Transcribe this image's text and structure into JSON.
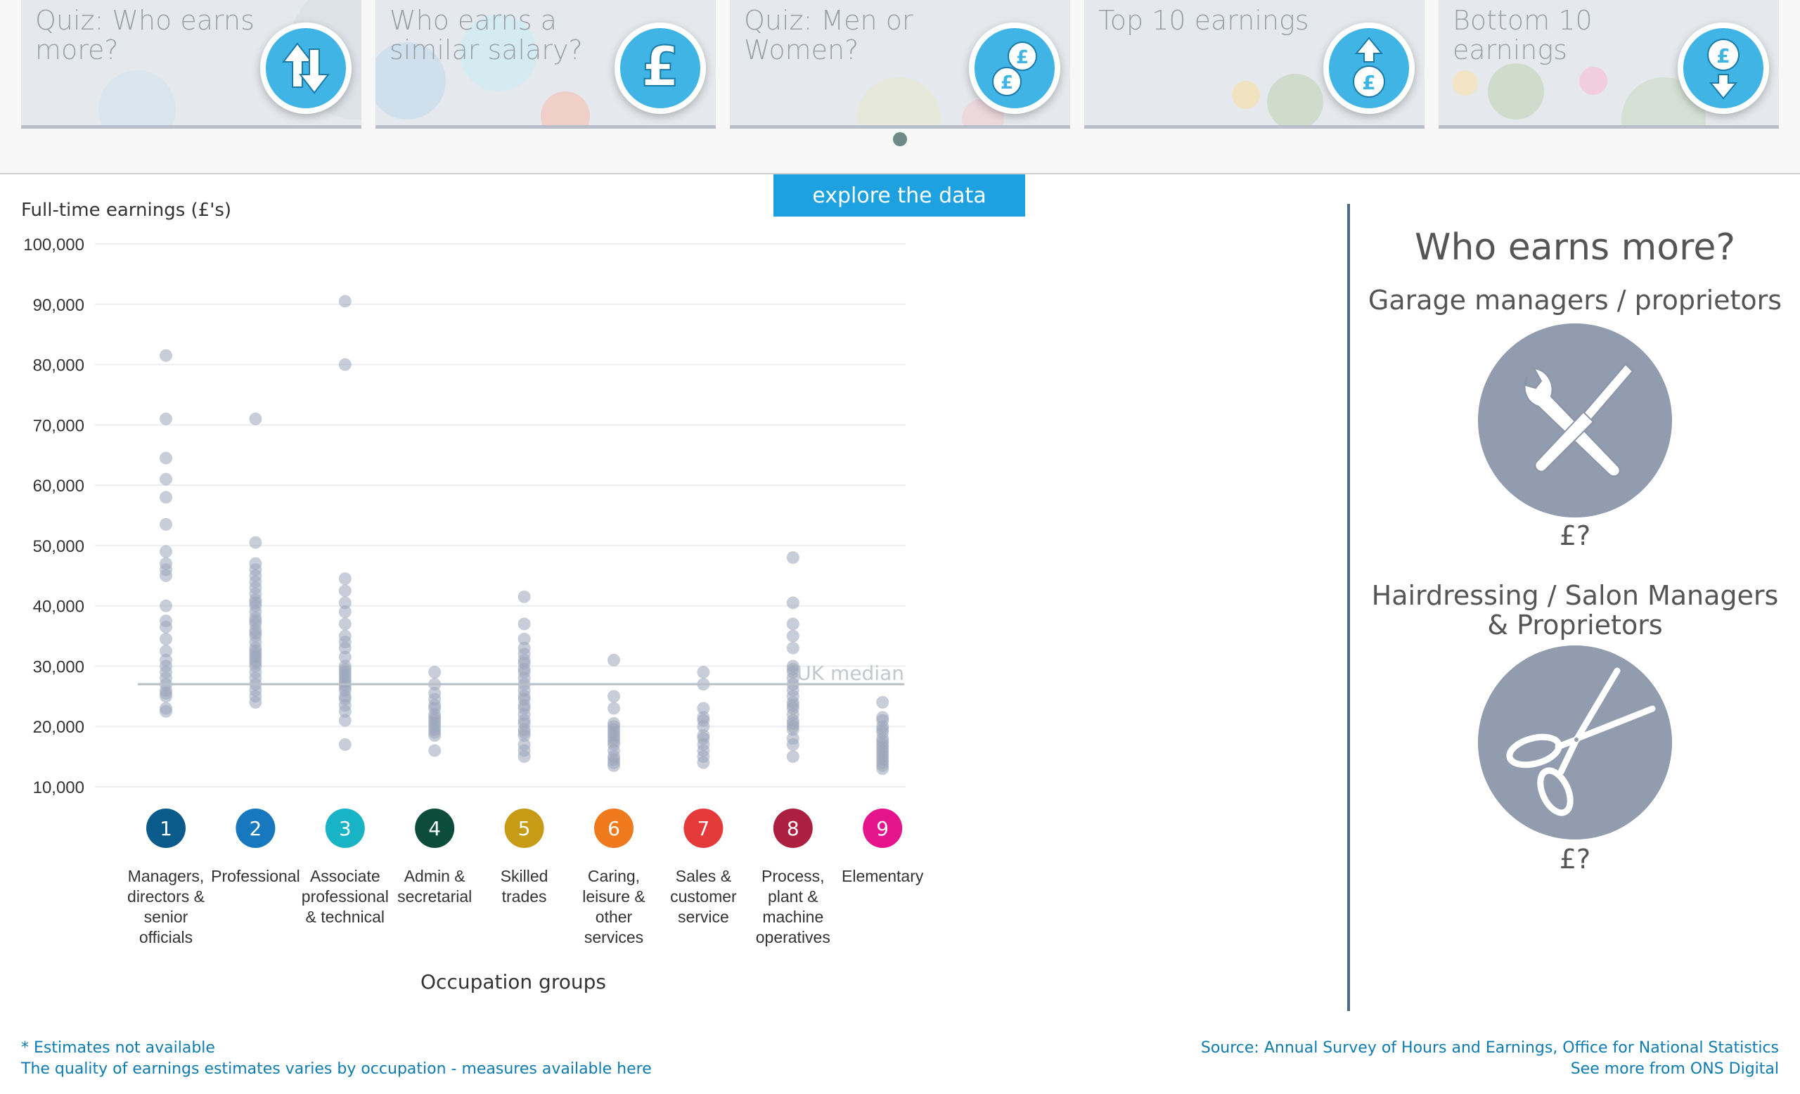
{
  "cards": [
    {
      "title": "Quiz: Who earns more?",
      "icon": "up-down-arrows-icon"
    },
    {
      "title": "Who earns a similar salary?",
      "icon": "pound-icon"
    },
    {
      "title": "Quiz: Men or Women?",
      "icon": "two-coins-icon"
    },
    {
      "title": "Top 10 earnings",
      "icon": "pound-arrow-up-icon"
    },
    {
      "title": "Bottom 10 earnings",
      "icon": "pound-arrow-down-icon"
    }
  ],
  "explore_button": "explore the data",
  "chart_data": {
    "type": "scatter",
    "ylabel": "Full-time earnings (£'s)",
    "xlabel": "Occupation groups",
    "ylim": [
      10000,
      100000
    ],
    "yticks": [
      10000,
      20000,
      30000,
      40000,
      50000,
      60000,
      70000,
      80000,
      90000,
      100000
    ],
    "ytick_labels": [
      "10,000",
      "20,000",
      "30,000",
      "40,000",
      "50,000",
      "60,000",
      "70,000",
      "80,000",
      "90,000",
      "100,000"
    ],
    "grid": true,
    "reference_line": {
      "label": "UK median",
      "value": 27000
    },
    "groups": [
      {
        "number": "1",
        "label": "Managers, directors & senior officials",
        "color": "#0a5a8c",
        "values": [
          81500,
          71000,
          64500,
          61000,
          58000,
          53500,
          49000,
          47000,
          46000,
          45000,
          40000,
          37500,
          36500,
          34500,
          32500,
          31000,
          30000,
          29000,
          28000,
          27000,
          26000,
          25500,
          25000,
          23000,
          22500
        ]
      },
      {
        "number": "2",
        "label": "Professional",
        "color": "#1777bf",
        "values": [
          71000,
          50500,
          47000,
          46000,
          45000,
          44000,
          43000,
          42000,
          41000,
          40500,
          40000,
          39000,
          38000,
          37500,
          37000,
          36000,
          35500,
          35000,
          34000,
          33000,
          32500,
          32000,
          31500,
          31000,
          30500,
          30000,
          29000,
          28000,
          27000,
          26000,
          25000,
          24000
        ]
      },
      {
        "number": "3",
        "label": "Associate professional & technical",
        "color": "#19b3c6",
        "values": [
          90500,
          80000,
          44500,
          42500,
          40500,
          39000,
          37000,
          35000,
          34000,
          33000,
          31500,
          30000,
          29500,
          29000,
          28500,
          28000,
          27500,
          27000,
          26500,
          26000,
          25000,
          24500,
          23500,
          22500,
          21000,
          17000
        ]
      },
      {
        "number": "4",
        "label": "Admin & secretarial",
        "color": "#0b4d3a",
        "values": [
          29000,
          27000,
          25500,
          24500,
          23500,
          23000,
          22000,
          21500,
          21000,
          20500,
          20000,
          19500,
          19000,
          18500,
          16000
        ]
      },
      {
        "number": "5",
        "label": "Skilled trades",
        "color": "#c69b16",
        "values": [
          41500,
          37000,
          34500,
          33000,
          32000,
          31000,
          30500,
          29500,
          29000,
          28000,
          27000,
          26000,
          25000,
          24500,
          23500,
          23000,
          22000,
          21000,
          20500,
          19500,
          19000,
          18500,
          17000,
          16000,
          15000
        ]
      },
      {
        "number": "6",
        "label": "Caring, leisure & other services",
        "color": "#ef7a1e",
        "values": [
          31000,
          25000,
          23000,
          20500,
          20000,
          19500,
          19000,
          18500,
          18000,
          17500,
          17000,
          16000,
          15000,
          14500,
          14000,
          13500
        ]
      },
      {
        "number": "7",
        "label": "Sales & customer service",
        "color": "#e53a3a",
        "values": [
          29000,
          27000,
          23000,
          21500,
          21000,
          20000,
          18500,
          18000,
          17000,
          16000,
          15000,
          14000
        ]
      },
      {
        "number": "8",
        "label": "Process, plant & machine operatives",
        "color": "#ad1f40",
        "values": [
          48000,
          40500,
          37000,
          35000,
          33000,
          30000,
          29500,
          29000,
          28000,
          27000,
          26000,
          25000,
          24000,
          23500,
          23000,
          22000,
          21000,
          20500,
          20000,
          19500,
          18000,
          17000,
          15000
        ]
      },
      {
        "number": "9",
        "label": "Elementary",
        "color": "#e5138c",
        "values": [
          24000,
          21500,
          21000,
          20000,
          19500,
          19000,
          18000,
          17500,
          17000,
          16500,
          16000,
          15500,
          15000,
          14500,
          14000,
          13500,
          13000
        ]
      }
    ]
  },
  "panel": {
    "title": "Who earns more?",
    "occupation_a": {
      "name": "Garage managers / proprietors",
      "icon": "wrench-screwdriver-icon",
      "value": "£?"
    },
    "occupation_b": {
      "name": "Hairdressing / Salon Managers & Proprietors",
      "icon": "scissors-icon",
      "value": "£?"
    }
  },
  "footer": {
    "note_1": "* Estimates not available",
    "note_2": "The quality of earnings estimates varies by occupation - measures available here",
    "source": "Source: Annual Survey of Hours and Earnings, Office for National Statistics",
    "more": "See more from ONS Digital"
  },
  "colors": {
    "accent": "#1da1e0",
    "dot": "#9aa6b9",
    "panel_circle": "#919cae",
    "card_icon": "#3fb4e5"
  }
}
